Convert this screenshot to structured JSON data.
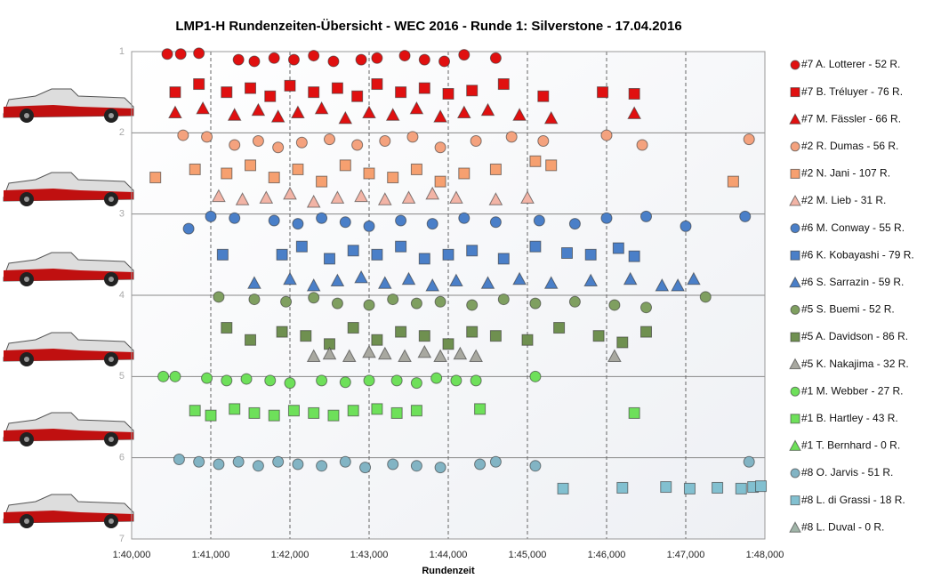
{
  "chart_data": {
    "type": "scatter",
    "title": "LMP1-H  Rundenzeiten-Übersicht  - WEC 2016  - Runde  1: Silverstone  - 17.04.2016",
    "x_label": "Rundenzeit",
    "xlim": [
      100,
      108
    ],
    "xticks": [
      {
        "value": 100,
        "label": "1:40,000"
      },
      {
        "value": 101,
        "label": "1:41,000"
      },
      {
        "value": 102,
        "label": "1:42,000"
      },
      {
        "value": 103,
        "label": "1:43,000"
      },
      {
        "value": 104,
        "label": "1:44,000"
      },
      {
        "value": 105,
        "label": "1:45,000"
      },
      {
        "value": 106,
        "label": "1:46,000"
      },
      {
        "value": 107,
        "label": "1:47,000"
      },
      {
        "value": 108,
        "label": "1:48,000"
      }
    ],
    "ylim": [
      1,
      7
    ],
    "y_inverted": true,
    "yticks": [
      1,
      2,
      3,
      4,
      5,
      6,
      7
    ],
    "grid": true,
    "legend": "right",
    "series": [
      {
        "name": "#7 A. Lotterer - 52 R.",
        "color": "#e01010",
        "marker": "circle",
        "x": [
          100.45,
          100.62,
          100.85,
          101.35,
          101.55,
          101.8,
          102.05,
          102.3,
          102.55,
          102.9,
          103.1,
          103.45,
          103.7,
          103.95,
          104.2,
          104.6
        ],
        "values": [
          1.03,
          1.03,
          1.02,
          1.1,
          1.12,
          1.08,
          1.1,
          1.05,
          1.12,
          1.1,
          1.08,
          1.05,
          1.1,
          1.12,
          1.04,
          1.08
        ]
      },
      {
        "name": "#7 B. Tréluyer - 76 R.",
        "color": "#e01010",
        "marker": "square",
        "x": [
          100.55,
          100.85,
          101.2,
          101.5,
          101.75,
          102.0,
          102.3,
          102.6,
          102.85,
          103.1,
          103.4,
          103.7,
          104.0,
          104.3,
          104.7,
          105.2,
          105.95,
          106.35
        ],
        "values": [
          1.5,
          1.4,
          1.5,
          1.45,
          1.55,
          1.42,
          1.5,
          1.45,
          1.55,
          1.4,
          1.5,
          1.45,
          1.52,
          1.48,
          1.4,
          1.55,
          1.5,
          1.52
        ]
      },
      {
        "name": "#7 M. Fässler - 66 R.",
        "color": "#e01010",
        "marker": "triangle",
        "x": [
          100.55,
          100.9,
          101.3,
          101.6,
          101.85,
          102.1,
          102.4,
          102.7,
          103.0,
          103.3,
          103.6,
          103.9,
          104.2,
          104.5,
          104.9,
          105.3,
          106.35
        ],
        "values": [
          1.75,
          1.7,
          1.78,
          1.72,
          1.8,
          1.75,
          1.7,
          1.82,
          1.75,
          1.78,
          1.7,
          1.8,
          1.75,
          1.72,
          1.78,
          1.82,
          1.76
        ]
      },
      {
        "name": "#2 R. Dumas - 56 R.",
        "color": "#f4a27e",
        "marker": "circle",
        "x": [
          100.65,
          100.95,
          101.3,
          101.6,
          101.85,
          102.15,
          102.5,
          102.85,
          103.2,
          103.55,
          103.9,
          104.35,
          104.8,
          105.2,
          106.0,
          106.45,
          107.8
        ],
        "values": [
          2.03,
          2.05,
          2.15,
          2.1,
          2.18,
          2.12,
          2.08,
          2.15,
          2.1,
          2.05,
          2.18,
          2.1,
          2.05,
          2.1,
          2.03,
          2.15,
          2.08
        ]
      },
      {
        "name": "#2 N. Jani - 107 R.",
        "color": "#f6a070",
        "marker": "square",
        "x": [
          100.3,
          100.8,
          101.2,
          101.5,
          101.8,
          102.1,
          102.4,
          102.7,
          103.0,
          103.3,
          103.6,
          103.9,
          104.2,
          104.6,
          105.1,
          105.3,
          107.6
        ],
        "values": [
          2.55,
          2.45,
          2.5,
          2.4,
          2.55,
          2.45,
          2.6,
          2.4,
          2.5,
          2.55,
          2.45,
          2.6,
          2.5,
          2.45,
          2.35,
          2.4,
          2.6
        ]
      },
      {
        "name": "#2 M. Lieb - 31 R.",
        "color": "#f2b4a6",
        "marker": "triangle",
        "x": [
          101.1,
          101.4,
          101.7,
          102.0,
          102.3,
          102.6,
          102.9,
          103.2,
          103.5,
          103.8,
          104.1,
          104.6,
          105.0
        ],
        "values": [
          2.78,
          2.82,
          2.8,
          2.75,
          2.85,
          2.8,
          2.78,
          2.82,
          2.8,
          2.75,
          2.8,
          2.82,
          2.8
        ]
      },
      {
        "name": "#6 M. Conway - 55 R.",
        "color": "#4a7fc8",
        "marker": "circle",
        "x": [
          100.72,
          101.0,
          101.3,
          101.8,
          102.1,
          102.4,
          102.7,
          103.0,
          103.4,
          103.8,
          104.2,
          104.6,
          105.15,
          105.6,
          106.0,
          106.5,
          107.0,
          107.75
        ],
        "values": [
          3.18,
          3.03,
          3.05,
          3.08,
          3.12,
          3.05,
          3.1,
          3.15,
          3.08,
          3.12,
          3.05,
          3.1,
          3.08,
          3.12,
          3.05,
          3.03,
          3.15,
          3.03
        ]
      },
      {
        "name": "#6 K. Kobayashi - 79 R.",
        "color": "#4a7fc8",
        "marker": "square",
        "x": [
          101.15,
          101.9,
          102.15,
          102.5,
          102.8,
          103.1,
          103.4,
          103.7,
          104.0,
          104.3,
          104.7,
          105.1,
          105.5,
          105.8,
          106.15,
          106.35
        ],
        "values": [
          3.5,
          3.5,
          3.4,
          3.55,
          3.45,
          3.5,
          3.4,
          3.55,
          3.5,
          3.45,
          3.55,
          3.4,
          3.48,
          3.5,
          3.42,
          3.52
        ]
      },
      {
        "name": "#6 S. Sarrazin - 59 R.",
        "color": "#4a7fc8",
        "marker": "triangle",
        "x": [
          101.55,
          102.0,
          102.3,
          102.6,
          102.9,
          103.2,
          103.5,
          103.8,
          104.1,
          104.5,
          104.9,
          105.3,
          105.8,
          106.3,
          106.7,
          106.9,
          107.1
        ],
        "values": [
          3.85,
          3.8,
          3.88,
          3.82,
          3.78,
          3.85,
          3.8,
          3.88,
          3.82,
          3.85,
          3.8,
          3.85,
          3.82,
          3.8,
          3.88,
          3.88,
          3.8
        ]
      },
      {
        "name": "#5 S. Buemi - 52 R.",
        "color": "#7f9f60",
        "marker": "circle",
        "x": [
          101.1,
          101.55,
          101.95,
          102.3,
          102.6,
          103.0,
          103.3,
          103.6,
          103.9,
          104.3,
          104.7,
          105.1,
          105.6,
          106.1,
          106.5,
          107.25
        ],
        "values": [
          4.02,
          4.05,
          4.08,
          4.03,
          4.1,
          4.12,
          4.05,
          4.1,
          4.08,
          4.12,
          4.05,
          4.1,
          4.08,
          4.12,
          4.15,
          4.02
        ]
      },
      {
        "name": "#5 A. Davidson - 86 R.",
        "color": "#6f9050",
        "marker": "square",
        "x": [
          101.2,
          101.5,
          101.9,
          102.2,
          102.5,
          102.8,
          103.1,
          103.4,
          103.7,
          104.0,
          104.3,
          104.6,
          105.0,
          105.4,
          105.9,
          106.2,
          106.5
        ],
        "values": [
          4.4,
          4.55,
          4.45,
          4.5,
          4.6,
          4.4,
          4.55,
          4.45,
          4.5,
          4.6,
          4.45,
          4.5,
          4.55,
          4.4,
          4.5,
          4.58,
          4.45
        ]
      },
      {
        "name": "#5 K. Nakajima - 32 R.",
        "color": "#a8a8a0",
        "marker": "triangle",
        "x": [
          102.3,
          102.5,
          102.75,
          103.0,
          103.2,
          103.45,
          103.7,
          103.9,
          104.15,
          104.35,
          106.1
        ],
        "values": [
          4.75,
          4.72,
          4.75,
          4.7,
          4.72,
          4.75,
          4.7,
          4.75,
          4.72,
          4.75,
          4.75
        ]
      },
      {
        "name": "#1 M. Webber - 27 R.",
        "color": "#6ee05a",
        "marker": "circle",
        "x": [
          100.4,
          100.55,
          100.95,
          101.2,
          101.45,
          101.75,
          102.0,
          102.4,
          102.7,
          103.0,
          103.35,
          103.6,
          103.85,
          104.1,
          104.35,
          105.1
        ],
        "values": [
          5.0,
          5.0,
          5.02,
          5.05,
          5.03,
          5.05,
          5.08,
          5.05,
          5.07,
          5.05,
          5.05,
          5.08,
          5.02,
          5.05,
          5.05,
          5.0
        ]
      },
      {
        "name": "#1 B. Hartley - 43 R.",
        "color": "#6ee05a",
        "marker": "square",
        "x": [
          100.8,
          101.0,
          101.3,
          101.55,
          101.8,
          102.05,
          102.3,
          102.55,
          102.8,
          103.1,
          103.35,
          103.6,
          104.4,
          106.35
        ],
        "values": [
          5.42,
          5.48,
          5.4,
          5.45,
          5.48,
          5.42,
          5.45,
          5.48,
          5.42,
          5.4,
          5.45,
          5.42,
          5.4,
          5.45
        ]
      },
      {
        "name": "#1 T. Bernhard - 0 R.",
        "color": "#6ee05a",
        "marker": "triangle",
        "x": [],
        "values": []
      },
      {
        "name": "#8 O. Jarvis - 51 R.",
        "color": "#82b4c4",
        "marker": "circle",
        "x": [
          100.6,
          100.85,
          101.1,
          101.35,
          101.6,
          101.85,
          102.1,
          102.4,
          102.7,
          102.95,
          103.3,
          103.6,
          103.9,
          104.4,
          104.6,
          105.1,
          107.8
        ],
        "values": [
          6.02,
          6.05,
          6.08,
          6.05,
          6.1,
          6.05,
          6.08,
          6.1,
          6.05,
          6.12,
          6.08,
          6.1,
          6.12,
          6.08,
          6.05,
          6.1,
          6.05
        ]
      },
      {
        "name": "#8 L. di Grassi - 18 R.",
        "color": "#82c0d0",
        "marker": "square",
        "x": [
          105.45,
          106.2,
          106.75,
          107.05,
          107.4,
          107.7,
          107.85,
          107.95
        ],
        "values": [
          6.38,
          6.37,
          6.36,
          6.38,
          6.37,
          6.38,
          6.36,
          6.35
        ]
      },
      {
        "name": "#8 L. Duval - 0 R.",
        "color": "#a0b4a8",
        "marker": "triangle",
        "x": [],
        "values": []
      }
    ]
  }
}
